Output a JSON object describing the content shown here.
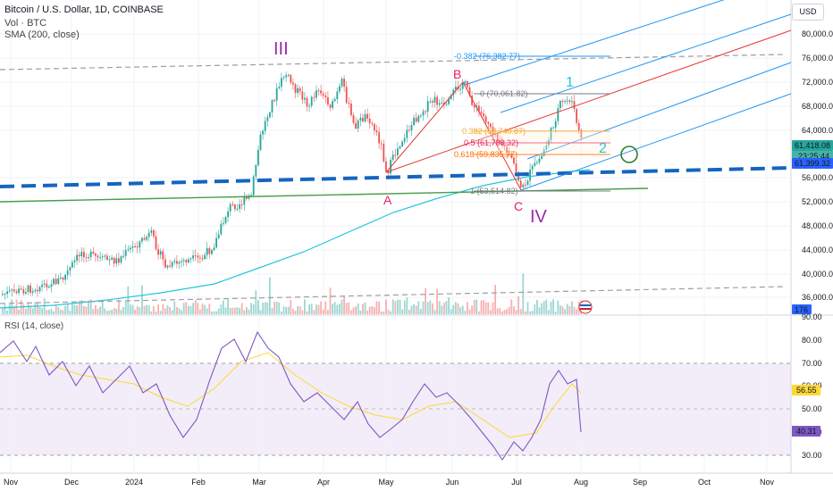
{
  "header": {
    "title": "Bitcoin / U.S. Dollar, 1D, COINBASE",
    "volume": "Vol · BTC",
    "sma": "SMA (200, close)",
    "currency": "USD"
  },
  "rsi_label": "RSI (14, close)",
  "price_axis": [
    "80,000.00",
    "76,000.00",
    "72,000.00",
    "68,000.00",
    "64,000.00",
    "56,000.00",
    "52,000.00",
    "48,000.00",
    "44,000.00",
    "40,000.00",
    "36,000.00"
  ],
  "price_badges": {
    "last": "61,418.08",
    "countdown": "23:25:44",
    "sma": "61,399.32",
    "volume": "176",
    "last_color": "#26a69a",
    "sma_color": "#2962ff",
    "volume_color": "#2962ff"
  },
  "rsi_axis": [
    "90.00",
    "80.00",
    "70.00",
    "60.00",
    "50.00",
    "40.00",
    "30.00"
  ],
  "rsi_badges": {
    "ma": "56.55",
    "rsi": "40.31"
  },
  "time_axis": [
    "Nov",
    "Dec",
    "2024",
    "Feb",
    "Mar",
    "Apr",
    "May",
    "Jun",
    "Jul",
    "Aug",
    "Sep",
    "Oct",
    "Nov"
  ],
  "waves": {
    "III": "III",
    "IV": "IV",
    "A": "A",
    "B": "B",
    "C": "C",
    "one": "1",
    "two": "2",
    "purple": "#9c27b0",
    "red": "#e91e63",
    "teal": "#26c6da"
  },
  "fib_levels": [
    {
      "label": "-0.382 (76,382.77)",
      "color": "#2196f3"
    },
    {
      "label": "0 (70,061.82)",
      "color": "#787b86"
    },
    {
      "label": "0.382 (63,740.87)",
      "color": "#f9a825"
    },
    {
      "label": "0.5 (61,788.32)",
      "color": "#e91e63"
    },
    {
      "label": "0.618 (59,835.77)",
      "color": "#ff6d00"
    },
    {
      "label": "1 (53,514.82)",
      "color": "#787b86"
    }
  ],
  "colors": {
    "up": "#26a69a",
    "down": "#ef5350",
    "sma": "#26c6da",
    "rsi": "#7e57c2",
    "rsi_ma": "#fdd835",
    "trend_dash": "#1565c0",
    "green_line": "#43a047",
    "pitchfork_blue": "#2196f3",
    "pitchfork_red": "#e53935"
  }
}
